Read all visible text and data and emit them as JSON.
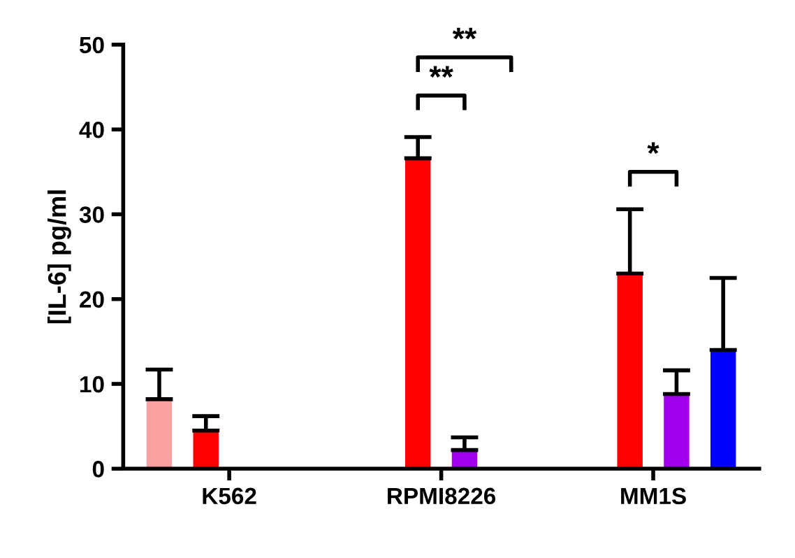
{
  "chart_data": {
    "type": "bar",
    "ylabel": "[IL-6] pg/ml",
    "categories": [
      "K562",
      "RPMI8226",
      "MM1S"
    ],
    "series": [
      {
        "color": "#f9a0a0",
        "values": [
          8.2,
          null,
          null
        ],
        "errors": [
          [
            8.2,
            11.7
          ],
          null,
          null
        ]
      },
      {
        "color": "#ff0000",
        "values": [
          4.5,
          36.6,
          23.0
        ],
        "errors": [
          [
            4.5,
            6.2
          ],
          [
            36.6,
            39.1
          ],
          [
            23.0,
            30.6
          ]
        ]
      },
      {
        "color": "#a000ee",
        "values": [
          null,
          2.2,
          8.8
        ],
        "errors": [
          null,
          [
            2.2,
            3.7
          ],
          [
            8.8,
            11.6
          ]
        ]
      },
      {
        "color": "#0000ff",
        "values": [
          null,
          null,
          14.0
        ],
        "errors": [
          null,
          null,
          [
            14.0,
            22.5
          ]
        ]
      }
    ],
    "ylim": [
      0,
      50
    ],
    "yticks": [
      0,
      10,
      20,
      30,
      40,
      50
    ],
    "grid": false,
    "legend": false,
    "annotations": [
      "**",
      "**",
      "*"
    ]
  }
}
